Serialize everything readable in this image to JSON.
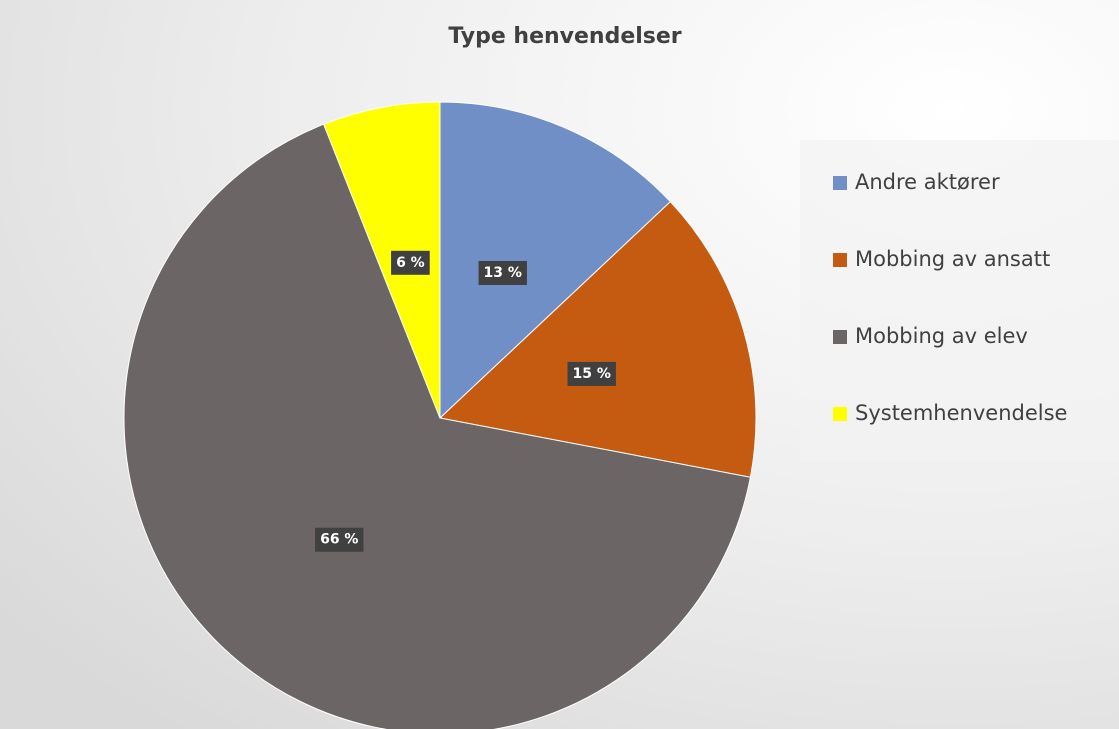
{
  "chart_data": {
    "type": "pie",
    "title": "Type henvendelser",
    "categories": [
      "Andre aktører",
      "Mobbing av ansatt",
      "Mobbing av elev",
      "Systemhenvendelse"
    ],
    "values": [
      13,
      15,
      66,
      6
    ],
    "value_labels": [
      "13 %",
      "15 %",
      "66 %",
      "6 %"
    ],
    "colors": [
      "#6f8fc6",
      "#c55a11",
      "#6b6665",
      "#ffff00"
    ],
    "legend": "right"
  }
}
